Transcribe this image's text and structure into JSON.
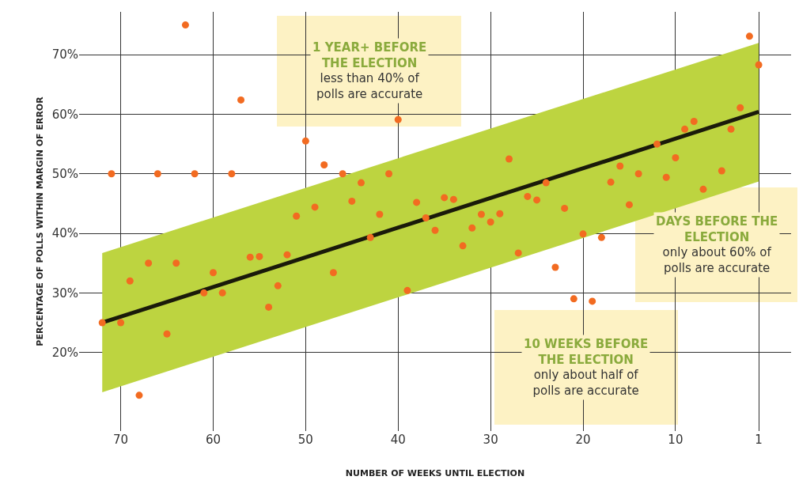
{
  "chart_data": {
    "type": "scatter",
    "xlabel": "NUMBER OF WEEKS UNTIL ELECTION",
    "ylabel": "PERCENTAGE OF POLLS WITHIN MARGIN OF ERROR",
    "xlim": [
      74.5,
      -2.5
    ],
    "ylim": [
      6.8,
      77.2
    ],
    "xticks": [
      70,
      60,
      50,
      40,
      30,
      20,
      10,
      1
    ],
    "yticks": [
      {
        "value": 20,
        "label": "20%"
      },
      {
        "value": 30,
        "label": "30%"
      },
      {
        "value": 40,
        "label": "40%"
      },
      {
        "value": 50,
        "label": "50%"
      },
      {
        "value": 60,
        "label": "60%"
      },
      {
        "value": 70,
        "label": "70%"
      }
    ],
    "grid": true,
    "series": [
      {
        "type": "line",
        "color": "#1a1a0a",
        "x": [
          72,
          1
        ],
        "values": [
          25.0,
          60.4
        ],
        "lower": [
          13.3,
          48.7
        ],
        "upper": [
          36.7,
          72.0
        ]
      },
      {
        "marker": "circle",
        "color": "#f26b21",
        "x": [
          72,
          71,
          70,
          69,
          68,
          67,
          66,
          65,
          64,
          63,
          62,
          61,
          60,
          59,
          58,
          57,
          56,
          55,
          54,
          53,
          52,
          51,
          50,
          49,
          48,
          47,
          46,
          45,
          44,
          43,
          42,
          41,
          40,
          39,
          38,
          37,
          36,
          35,
          34,
          33,
          32,
          31,
          30,
          29,
          28,
          27,
          26,
          25,
          24,
          23,
          22,
          21,
          20,
          19,
          18,
          17,
          16,
          15,
          14,
          12,
          11,
          10,
          9,
          8,
          7,
          5,
          4,
          3,
          2,
          1
        ],
        "values": [
          25.0,
          50,
          25,
          32,
          12.8,
          35,
          50,
          23.1,
          35,
          75,
          50,
          30,
          33.4,
          30,
          50,
          62.4,
          36,
          36.1,
          27.6,
          31.2,
          36.4,
          42.9,
          55.5,
          44.4,
          51.5,
          33.4,
          50,
          45.4,
          48.5,
          39.3,
          43.2,
          50,
          59.1,
          30.4,
          45.2,
          42.6,
          40.5,
          46,
          45.7,
          37.9,
          40.9,
          43.2,
          41.9,
          43.3,
          52.5,
          36.7,
          46.2,
          45.6,
          48.5,
          34.3,
          44.2,
          29.0,
          39.9,
          28.6,
          39.3,
          48.6,
          51.3,
          44.8,
          50,
          55.0,
          49.4,
          52.7,
          57.5,
          58.8,
          47.4,
          50.5,
          57.5,
          61.1,
          73.1,
          68.3
        ]
      }
    ],
    "annotations": [
      "1 YEAR+ BEFORE THE ELECTION\nless than 40% of polls are accurate",
      "DAYS BEFORE THE ELECTION\nonly about 60% of polls are accurate",
      "10 WEEKS BEFORE THE ELECTION\nonly about half of polls are accurate"
    ]
  }
}
